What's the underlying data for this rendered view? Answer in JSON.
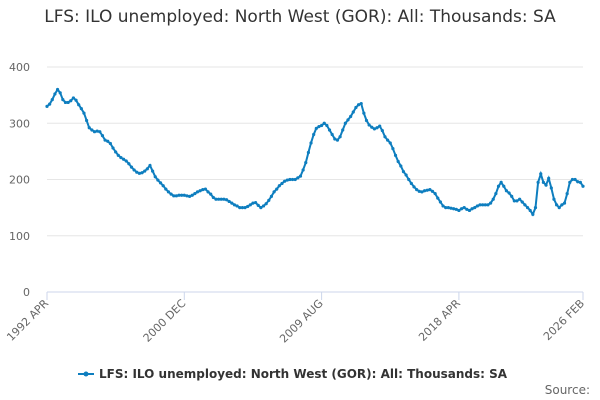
{
  "chart_data": {
    "type": "line",
    "title": "LFS: ILO unemployed: North West (GOR): All: Thousands: SA",
    "source_label": "Source:",
    "categories": [
      "1992 APR",
      null,
      null,
      null,
      null,
      null,
      null,
      null,
      null,
      null,
      null,
      null,
      null,
      null,
      null,
      null,
      null,
      null,
      null,
      null,
      null,
      null,
      null,
      null,
      null,
      null,
      null,
      null,
      null,
      null,
      null,
      null,
      null,
      null,
      null,
      null,
      null,
      null,
      null,
      null,
      null,
      null,
      null,
      null,
      null,
      null,
      null,
      null,
      null,
      null,
      null,
      null,
      "2000 DEC",
      null,
      null,
      null,
      null,
      null,
      null,
      null,
      null,
      null,
      null,
      null,
      null,
      null,
      null,
      null,
      null,
      null,
      null,
      null,
      null,
      null,
      null,
      null,
      null,
      null,
      null,
      null,
      null,
      null,
      null,
      null,
      null,
      null,
      null,
      null,
      null,
      null,
      null,
      null,
      null,
      null,
      null,
      null,
      null,
      null,
      null,
      null,
      null,
      null,
      null,
      null,
      "2009 AUG",
      null,
      null,
      null,
      null,
      null,
      null,
      null,
      null,
      null,
      null,
      null,
      null,
      null,
      null,
      null,
      null,
      null,
      null,
      null,
      null,
      null,
      null,
      null,
      null,
      null,
      null,
      null,
      null,
      null,
      null,
      null,
      null,
      null,
      null,
      null,
      null,
      null,
      null,
      null,
      null,
      null,
      null,
      null,
      null,
      null,
      null,
      null,
      null,
      null,
      null,
      null,
      "2018 APR",
      null,
      null,
      null,
      null,
      null,
      null,
      null,
      null,
      null,
      null,
      null,
      null,
      null,
      null,
      null,
      null,
      null,
      null,
      null,
      null,
      null,
      null,
      null,
      null,
      null,
      null,
      null,
      null,
      null,
      null,
      null,
      null,
      null,
      null,
      null,
      null,
      null,
      null,
      null,
      null,
      null,
      null,
      null,
      null,
      null,
      null,
      "2026 FEB"
    ],
    "series": [
      {
        "name": "LFS: ILO unemployed: North West (GOR): All: Thousands: SA",
        "color": "#0e7ebf",
        "values": [
          330,
          334,
          342,
          352,
          360,
          354,
          342,
          337,
          337,
          340,
          345,
          341,
          333,
          326,
          318,
          305,
          292,
          288,
          285,
          286,
          285,
          278,
          270,
          268,
          264,
          256,
          249,
          243,
          239,
          236,
          233,
          228,
          222,
          217,
          213,
          211,
          212,
          215,
          219,
          225,
          215,
          205,
          199,
          194,
          189,
          183,
          178,
          174,
          171,
          171,
          172,
          172,
          172,
          171,
          170,
          172,
          175,
          178,
          180,
          182,
          183,
          178,
          174,
          168,
          165,
          165,
          165,
          165,
          164,
          161,
          158,
          155,
          153,
          150,
          150,
          150,
          152,
          155,
          158,
          159,
          154,
          150,
          153,
          157,
          163,
          170,
          178,
          183,
          189,
          193,
          197,
          199,
          200,
          200,
          200,
          203,
          206,
          217,
          230,
          248,
          265,
          280,
          291,
          294,
          296,
          300,
          296,
          288,
          280,
          272,
          270,
          276,
          288,
          300,
          306,
          312,
          320,
          328,
          333,
          335,
          318,
          305,
          297,
          293,
          290,
          292,
          295,
          287,
          276,
          270,
          265,
          255,
          243,
          232,
          224,
          214,
          208,
          200,
          193,
          187,
          182,
          179,
          178,
          180,
          181,
          182,
          179,
          175,
          167,
          160,
          153,
          150,
          150,
          149,
          148,
          147,
          145,
          148,
          150,
          147,
          145,
          148,
          150,
          153,
          155,
          155,
          155,
          155,
          158,
          165,
          175,
          188,
          195,
          188,
          180,
          176,
          170,
          162,
          162,
          165,
          160,
          155,
          150,
          145,
          138,
          150,
          195,
          210,
          195,
          190,
          202,
          185,
          165,
          155,
          150,
          155,
          158,
          175,
          195,
          200,
          200,
          196,
          195,
          188
        ]
      }
    ],
    "ylim": [
      0,
      400
    ],
    "yticks": [
      0,
      100,
      200,
      300,
      400
    ],
    "grid": true
  }
}
